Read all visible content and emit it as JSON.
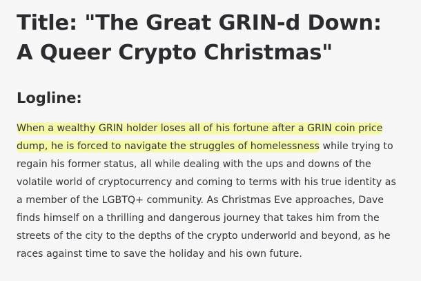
{
  "document": {
    "title": "Title: \"The Great GRIN-d Down: A Queer Crypto Christmas\"",
    "section_heading": "Logline:",
    "logline_highlighted": "When a wealthy GRIN holder loses all of his fortune after a GRIN coin price dump, he is forced to navigate the struggles of homelessness",
    "logline_rest": " while trying to regain his former status, all while dealing with the ups and downs of the volatile world of cryptocurrency and coming to terms with his true identity as a member of the LGBTQ+ community. As Christmas Eve approaches, Dave finds himself on a thrilling and dangerous journey that takes him from the streets of the city to the depths of the crypto underworld and beyond, as he races against time to save the holiday and his own future.",
    "highlight_color": "#f6f996"
  }
}
